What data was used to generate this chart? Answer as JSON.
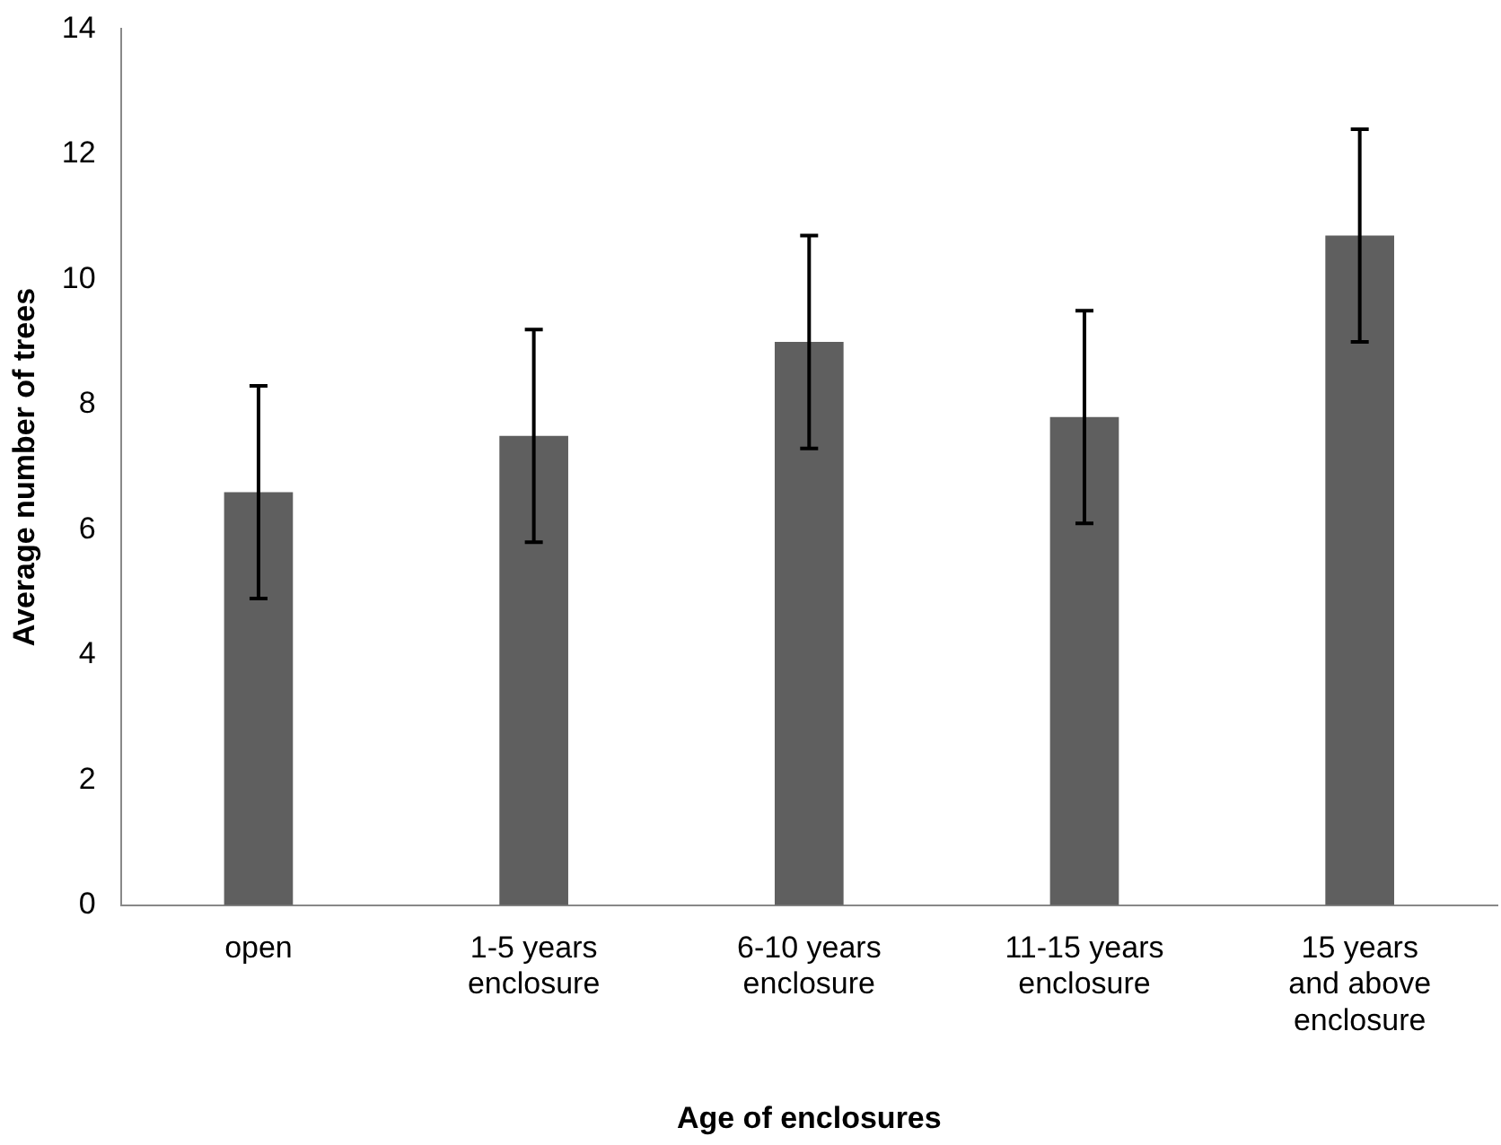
{
  "chart_data": {
    "type": "bar",
    "xlabel": "Age of enclosures",
    "ylabel": "Average number of trees",
    "categories": [
      "open",
      "1-5 years enclosure",
      "6-10 years enclosure",
      "11-15 years enclosure",
      "15 years and above enclosure"
    ],
    "values": [
      6.6,
      7.5,
      9.0,
      7.8,
      10.7
    ],
    "color": "#5f5f5f",
    "errors": [
      1.7,
      1.7,
      1.7,
      1.7,
      1.7
    ],
    "ylim": [
      0,
      14
    ],
    "yticks": [
      0,
      2,
      4,
      6,
      8,
      10,
      12,
      14
    ],
    "grid": false,
    "legend": false
  }
}
